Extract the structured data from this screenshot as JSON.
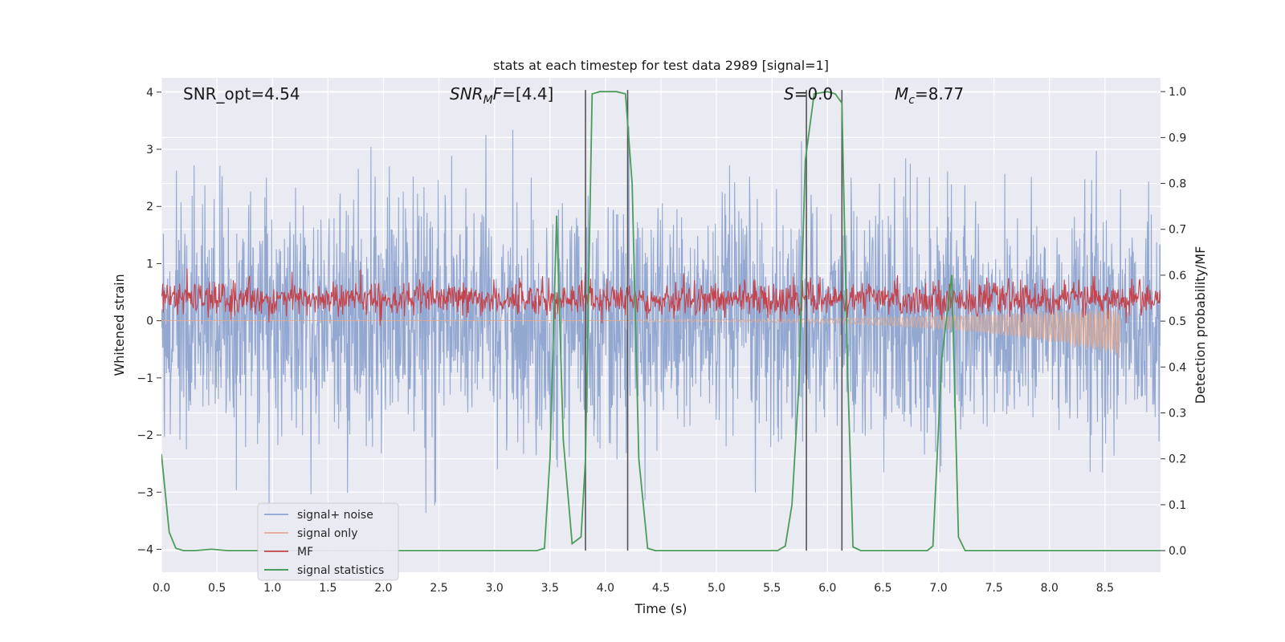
{
  "chart_data": {
    "type": "line",
    "title": "stats at each timestep for test data 2989 [signal=1]",
    "xlabel": "Time (s)",
    "ylabel_left": "Whitened strain",
    "ylabel_right": "Detection probability/MF",
    "xlim": [
      0,
      9
    ],
    "ylim_left": [
      -4.4,
      4.25
    ],
    "ylim_right": [
      -0.047,
      1.03
    ],
    "x_ticks": [
      "0.0",
      "0.5",
      "1.0",
      "1.5",
      "2.0",
      "2.5",
      "3.0",
      "3.5",
      "4.0",
      "4.5",
      "5.0",
      "5.5",
      "6.0",
      "6.5",
      "7.0",
      "7.5",
      "8.0",
      "8.5"
    ],
    "y_ticks_left": [
      "4",
      "3",
      "2",
      "1",
      "0",
      "−1",
      "−2",
      "−3",
      "−4"
    ],
    "y_ticks_right": [
      "0.0",
      "0.1",
      "0.2",
      "0.3",
      "0.4",
      "0.5",
      "0.6",
      "0.7",
      "0.8",
      "0.9",
      "1.0"
    ],
    "grid": true,
    "legend_placement": "lower-left",
    "annotations": {
      "snr_opt": "SNR_opt=4.54",
      "snr_mf": "SNR_MF=[4.4]",
      "s": "S=0.0",
      "mc": "M_c=8.77"
    },
    "vertical_lines_x": [
      3.82,
      4.2,
      5.81,
      6.13
    ],
    "series": [
      {
        "name": "signal+ noise",
        "axis": "left",
        "color": "#8ea4cf",
        "description_values": {
          "approx_range": [
            -3.4,
            3.4
          ],
          "duration_s": 9
        }
      },
      {
        "name": "signal only",
        "axis": "left",
        "color": "#e3a98d",
        "chirp": {
          "start_s": 4.3,
          "end_s": 8.63,
          "peak_amplitude": -0.65
        }
      },
      {
        "name": "MF",
        "axis": "right",
        "color": "#c4434c",
        "approx_range": [
          0.49,
          0.62
        ]
      },
      {
        "name": "signal statistics",
        "axis": "right",
        "color": "#4a9c5b",
        "points": [
          [
            0.0,
            0.21
          ],
          [
            0.07,
            0.04
          ],
          [
            0.13,
            0.005
          ],
          [
            0.2,
            0.0
          ],
          [
            0.3,
            0.0
          ],
          [
            0.45,
            0.003
          ],
          [
            0.6,
            0.0
          ],
          [
            1.0,
            0.0
          ],
          [
            2.0,
            0.0
          ],
          [
            3.0,
            0.0
          ],
          [
            3.38,
            0.0
          ],
          [
            3.45,
            0.005
          ],
          [
            3.5,
            0.2
          ],
          [
            3.56,
            0.73
          ],
          [
            3.62,
            0.24
          ],
          [
            3.7,
            0.015
          ],
          [
            3.78,
            0.03
          ],
          [
            3.82,
            0.2
          ],
          [
            3.88,
            0.995
          ],
          [
            3.95,
            1.0
          ],
          [
            4.1,
            1.0
          ],
          [
            4.18,
            0.995
          ],
          [
            4.24,
            0.8
          ],
          [
            4.3,
            0.2
          ],
          [
            4.38,
            0.005
          ],
          [
            4.45,
            0.0
          ],
          [
            5.0,
            0.0
          ],
          [
            5.55,
            0.0
          ],
          [
            5.62,
            0.01
          ],
          [
            5.68,
            0.1
          ],
          [
            5.74,
            0.35
          ],
          [
            5.8,
            0.85
          ],
          [
            5.88,
            0.995
          ],
          [
            6.0,
            1.0
          ],
          [
            6.07,
            0.995
          ],
          [
            6.13,
            0.975
          ],
          [
            6.18,
            0.4
          ],
          [
            6.23,
            0.008
          ],
          [
            6.3,
            0.0
          ],
          [
            6.9,
            0.0
          ],
          [
            6.95,
            0.01
          ],
          [
            7.03,
            0.42
          ],
          [
            7.12,
            0.6
          ],
          [
            7.18,
            0.03
          ],
          [
            7.24,
            0.0
          ],
          [
            8.0,
            0.0
          ],
          [
            9.0,
            0.0
          ]
        ]
      }
    ]
  }
}
